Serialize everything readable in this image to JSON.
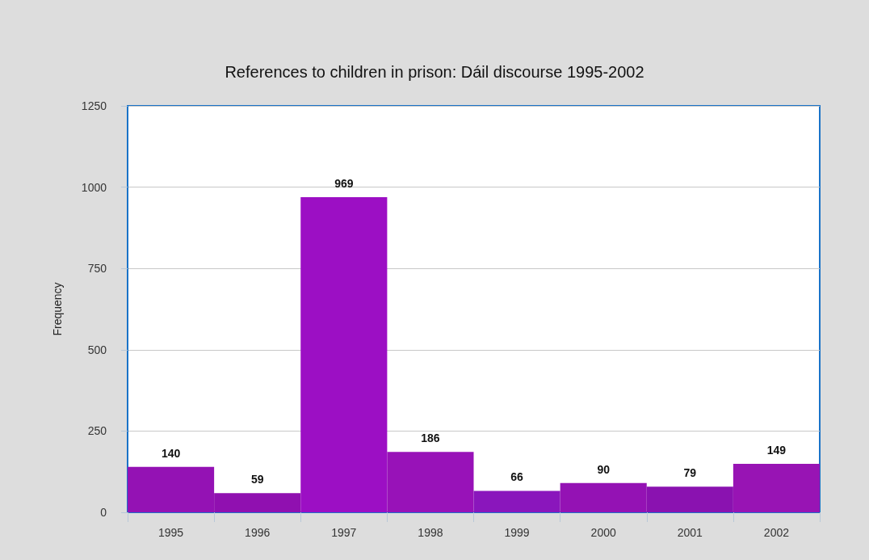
{
  "chart_data": {
    "type": "bar",
    "title": "References to children in prison: Dáil discourse 1995-2002",
    "ylabel": "Frequency",
    "categories": [
      "1995",
      "1996",
      "1997",
      "1998",
      "1999",
      "2000",
      "2001",
      "2002"
    ],
    "values": [
      140,
      59,
      969,
      186,
      66,
      90,
      79,
      149
    ],
    "colors": [
      "#9412b4",
      "#9010b0",
      "#9c0fc4",
      "#9812b8",
      "#8a16bc",
      "#9412b4",
      "#8a12b0",
      "#9814b4"
    ],
    "data_labels": true,
    "ylim": [
      0,
      1250
    ],
    "yticks": [
      0,
      250,
      500,
      750,
      1000,
      1250
    ],
    "grid": "y"
  }
}
